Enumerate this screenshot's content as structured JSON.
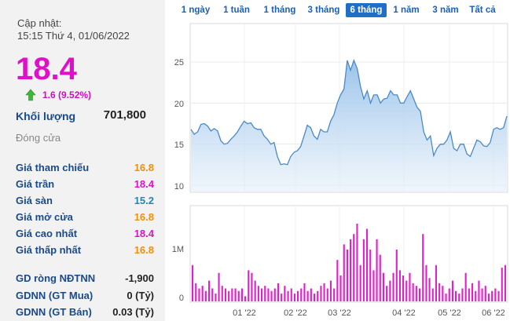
{
  "summary": {
    "update_label": "Cập nhật:",
    "update_time": "15:15 Thứ 4, 01/06/2022",
    "price": "18.4",
    "change": "1.6 (9.52%)",
    "volume_label": "Khối lượng",
    "volume_value": "701,800",
    "close_label": "Đóng cửa",
    "stats": [
      {
        "label": "Giá tham chiếu",
        "value": "16.8",
        "color": "#f0900a"
      },
      {
        "label": "Giá trần",
        "value": "18.4",
        "color": "#e010c8"
      },
      {
        "label": "Giá sàn",
        "value": "15.2",
        "color": "#1a8ab8"
      },
      {
        "label": "Giá mở cửa",
        "value": "16.8",
        "color": "#f0900a"
      },
      {
        "label": "Giá cao nhất",
        "value": "18.4",
        "color": "#e010c8"
      },
      {
        "label": "Giá thấp nhất",
        "value": "16.8",
        "color": "#f0900a"
      }
    ],
    "foreign": [
      {
        "label": "GD ròng NĐTNN",
        "value": "-1,900"
      },
      {
        "label": "GDNN (GT Mua)",
        "value": "0 (Tỷ)"
      },
      {
        "label": "GDNN (GT Bán)",
        "value": "0.03 (Tỷ)"
      }
    ]
  },
  "tabs": [
    {
      "label": "1 ngày",
      "active": false
    },
    {
      "label": "1 tuần",
      "active": false
    },
    {
      "label": "1 tháng",
      "active": false
    },
    {
      "label": "3 tháng",
      "active": false
    },
    {
      "label": "6 tháng",
      "active": true
    },
    {
      "label": "1 năm",
      "active": false
    },
    {
      "label": "3 năm",
      "active": false
    },
    {
      "label": "Tất cả",
      "active": false
    }
  ],
  "chart_data": {
    "type": "area",
    "price_axis": {
      "ticks": [
        "25",
        "20",
        "15",
        "10"
      ],
      "ylim": [
        10,
        25
      ]
    },
    "volume_axis": {
      "ticks": [
        "1M",
        "0"
      ],
      "ylim": [
        0,
        1000000
      ]
    },
    "x_ticks": [
      "01 '22",
      "02 '22",
      "03 '22",
      "04 '22",
      "05 '22",
      "06 '22"
    ],
    "price": [
      16.8,
      16.2,
      16.5,
      17.4,
      17.5,
      17.2,
      16.6,
      16.9,
      16.6,
      15.4,
      15.0,
      15.1,
      15.6,
      16.0,
      16.5,
      17.2,
      17.8,
      17.5,
      17.6,
      17.0,
      16.8,
      16.8,
      16.0,
      15.6,
      15.0,
      15.2,
      13.5,
      12.5,
      12.6,
      12.5,
      13.5,
      14.0,
      14.2,
      14.7,
      16.0,
      17.3,
      17.0,
      16.0,
      15.6,
      16.8,
      16.5,
      16.5,
      17.8,
      18.6,
      20.0,
      21.0,
      21.7,
      25.2,
      24.0,
      25.2,
      24.2,
      22.0,
      20.5,
      21.5,
      20.0,
      21.0,
      21.0,
      20.0,
      20.5,
      20.6,
      21.5,
      21.0,
      21.0,
      20.0,
      20.0,
      20.8,
      21.5,
      20.5,
      19.5,
      19.0,
      16.5,
      15.5,
      16.0,
      13.6,
      14.5,
      15.0,
      15.0,
      15.5,
      16.5,
      14.5,
      14.2,
      15.0,
      15.0,
      13.8,
      13.5,
      14.5,
      15.5,
      15.3,
      14.8,
      14.7,
      15.2,
      16.8,
      17.0,
      16.8,
      17.0,
      18.4
    ],
    "volume": [
      700000,
      350000,
      250000,
      300000,
      200000,
      400000,
      250000,
      150000,
      550000,
      300000,
      250000,
      200000,
      250000,
      250000,
      200000,
      250000,
      100000,
      600000,
      550000,
      400000,
      300000,
      250000,
      300000,
      250000,
      200000,
      250000,
      350000,
      150000,
      300000,
      200000,
      250000,
      150000,
      200000,
      250000,
      350000,
      200000,
      250000,
      150000,
      200000,
      300000,
      350000,
      250000,
      400000,
      250000,
      800000,
      500000,
      1100000,
      1000000,
      1200000,
      1300000,
      1500000,
      700000,
      1200000,
      1400000,
      1000000,
      600000,
      1200000,
      900000,
      550000,
      300000,
      400000,
      550000,
      1000000,
      600000,
      500000,
      400000,
      550000,
      350000,
      300000,
      250000,
      1300000,
      700000,
      450000,
      250000,
      700000,
      350000,
      300000,
      150000,
      250000,
      400000,
      200000,
      150000,
      250000,
      550000,
      250000,
      350000,
      200000,
      400000,
      250000,
      300000,
      150000,
      200000,
      250000,
      200000,
      650000,
      701800
    ]
  }
}
